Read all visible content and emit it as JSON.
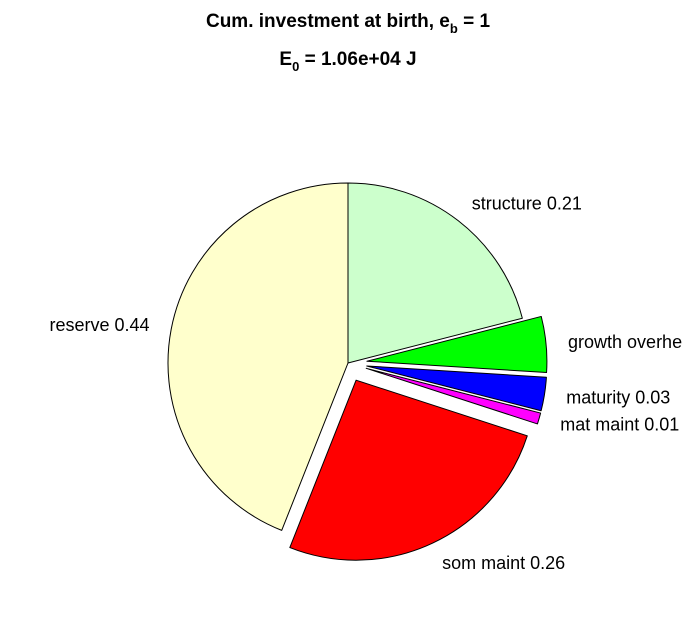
{
  "figure": {
    "title": {
      "line1_prefix": "Cum. investment at birth, e",
      "line1_subscript": "b",
      "line1_suffix": " = 1",
      "line2_prefix": "E",
      "line2_subscript": "0",
      "line2_suffix": " = 1.06e+04 J"
    }
  },
  "chart_data": {
    "type": "pie",
    "title": "Cum. investment at birth, e_b = 1; E_0 = 1.06e+04 J",
    "slices": [
      {
        "name": "structure",
        "value": 0.21,
        "label": "structure 0.21",
        "color": "#ccffcc",
        "exploded": false
      },
      {
        "name": "growth overhead",
        "value": 0.05,
        "label": "growth overhe",
        "color": "#00ff00",
        "exploded": true
      },
      {
        "name": "maturity",
        "value": 0.03,
        "label": "maturity 0.03",
        "color": "#0000ff",
        "exploded": true
      },
      {
        "name": "mat maint",
        "value": 0.01,
        "label": "mat maint 0.01",
        "color": "#ff00ff",
        "exploded": true
      },
      {
        "name": "som maint",
        "value": 0.26,
        "label": "som maint 0.26",
        "color": "#ff0000",
        "exploded": true
      },
      {
        "name": "reserve",
        "value": 0.44,
        "label": "reserve 0.44",
        "color": "#ffffcc",
        "exploded": false
      }
    ]
  }
}
